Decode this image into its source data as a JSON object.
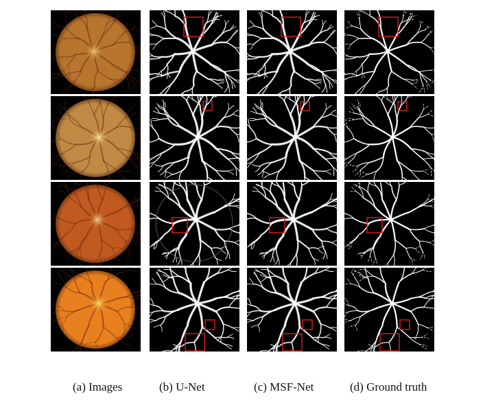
{
  "figure": {
    "columns": [
      {
        "key": "images",
        "caption": "(a) Images"
      },
      {
        "key": "unet",
        "caption": "(b) U-Net"
      },
      {
        "key": "msfnet",
        "caption": "(c) MSF-Net"
      },
      {
        "key": "gt",
        "caption": "(d) Ground truth"
      }
    ],
    "rows": [
      {
        "fundus": "#b8752e",
        "disc": "#f0d070"
      },
      {
        "fundus": "#c08a45",
        "disc": "#fff2a0"
      },
      {
        "fundus": "#c05a20",
        "disc": "#f7d890"
      },
      {
        "fundus": "#e8801f",
        "disc": "#ffe860"
      }
    ],
    "highlight_color": "#e02020",
    "background_color": "#000000"
  }
}
